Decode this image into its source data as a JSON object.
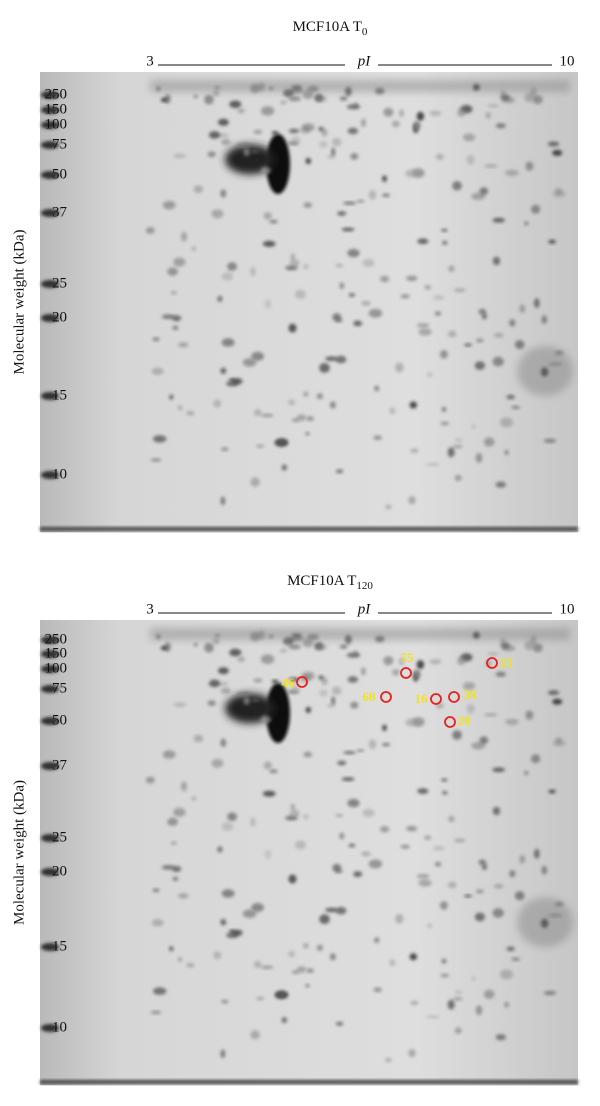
{
  "panels": [
    {
      "title": "MCF10A T",
      "title_subscript": "0",
      "x_axis": {
        "label": "pI",
        "min_label": "3",
        "max_label": "10"
      },
      "y_axis_label": "Molecular weight (kDa)",
      "mw_markers": [
        "250",
        "150",
        "100",
        "75",
        "50",
        "37",
        "25",
        "20",
        "15",
        "10"
      ]
    },
    {
      "title": "MCF10A T",
      "title_subscript": "120",
      "x_axis": {
        "label": "pI",
        "min_label": "3",
        "max_label": "10"
      },
      "y_axis_label": "Molecular weight (kDa)",
      "mw_markers": [
        "250",
        "150",
        "100",
        "75",
        "50",
        "37",
        "25",
        "20",
        "15",
        "10"
      ],
      "spots": [
        "46",
        "55",
        "23",
        "68",
        "16",
        "39",
        "20"
      ]
    }
  ]
}
